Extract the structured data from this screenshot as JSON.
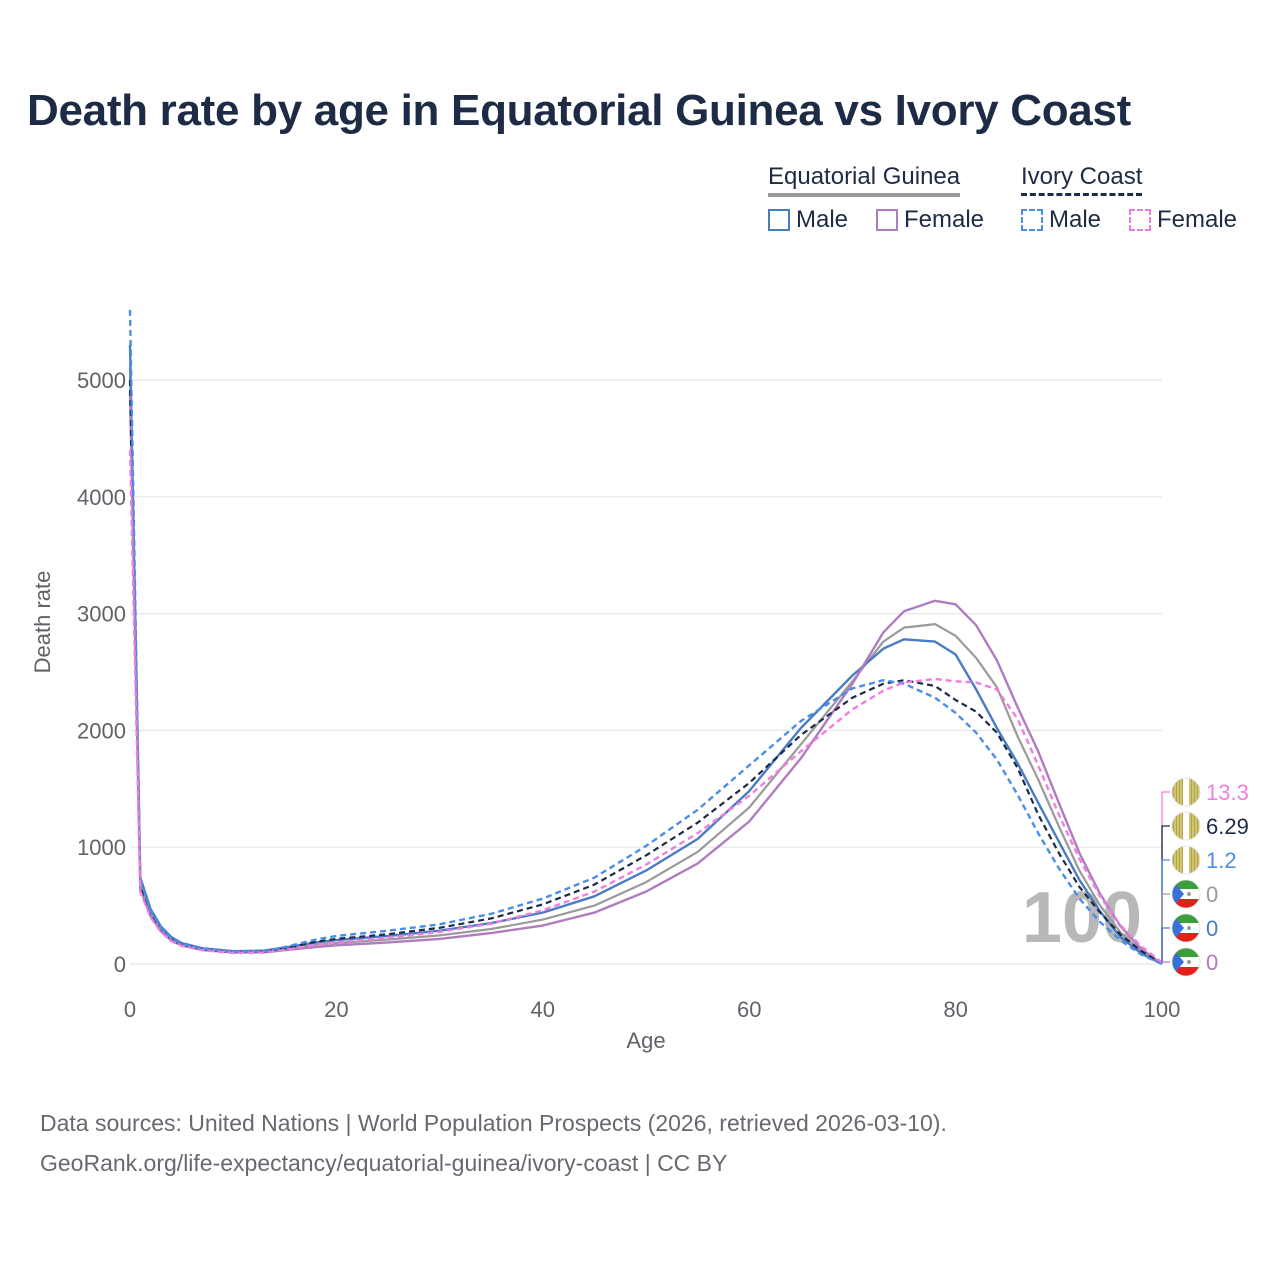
{
  "title": "Death rate by age in Equatorial Guinea vs Ivory Coast",
  "legend": {
    "groups": [
      {
        "name": "Equatorial Guinea",
        "style": "solid",
        "items": [
          "Male",
          "Female"
        ]
      },
      {
        "name": "Ivory Coast",
        "style": "dashed",
        "items": [
          "Male",
          "Female"
        ]
      }
    ]
  },
  "colors": {
    "eg_male": "#4a7cc4",
    "eg_female": "#b07cc0",
    "eg_total": "#9a9a9a",
    "ic_male": "#4a8ee8",
    "ic_female": "#f07ee0",
    "ic_total": "#1d2b45",
    "grid": "#e6e6e6",
    "text": "#1d2b45"
  },
  "watermark": "100",
  "end_labels": [
    {
      "value": "13.3",
      "color": "#f07ee0",
      "flag": "ivory-coast-flag-icon"
    },
    {
      "value": "6.29",
      "color": "#1d2b45",
      "flag": "ivory-coast-flag-icon"
    },
    {
      "value": "1.2",
      "color": "#4a8ee8",
      "flag": "ivory-coast-flag-icon"
    },
    {
      "value": "0",
      "color": "#9a9a9a",
      "flag": "equatorial-guinea-flag-icon"
    },
    {
      "value": "0",
      "color": "#4a7cc4",
      "flag": "equatorial-guinea-flag-icon"
    },
    {
      "value": "0",
      "color": "#b07cc0",
      "flag": "equatorial-guinea-flag-icon"
    }
  ],
  "source": {
    "line1": "Data sources: United Nations | World Population Prospects (2026, retrieved 2026-03-10).",
    "line2": "GeoRank.org/life-expectancy/equatorial-guinea/ivory-coast | CC BY"
  },
  "chart_data": {
    "type": "line",
    "title": "Death rate by age in Equatorial Guinea vs Ivory Coast",
    "xlabel": "Age",
    "ylabel": "Death rate",
    "xlim": [
      0,
      100
    ],
    "ylim": [
      0,
      5500
    ],
    "xticks": [
      0,
      20,
      40,
      60,
      80,
      100
    ],
    "yticks": [
      0,
      1000,
      2000,
      3000,
      4000,
      5000
    ],
    "grid": true,
    "series": [
      {
        "name": "Equatorial Guinea Total",
        "key": "eg_total",
        "dashed": false,
        "points": [
          [
            0,
            5100
          ],
          [
            1,
            690
          ],
          [
            2,
            440
          ],
          [
            3,
            300
          ],
          [
            4,
            215
          ],
          [
            5,
            170
          ],
          [
            7,
            130
          ],
          [
            10,
            105
          ],
          [
            13,
            110
          ],
          [
            15,
            130
          ],
          [
            18,
            165
          ],
          [
            20,
            180
          ],
          [
            25,
            210
          ],
          [
            30,
            245
          ],
          [
            35,
            300
          ],
          [
            40,
            380
          ],
          [
            45,
            500
          ],
          [
            50,
            700
          ],
          [
            55,
            960
          ],
          [
            60,
            1340
          ],
          [
            65,
            1880
          ],
          [
            70,
            2420
          ],
          [
            73,
            2760
          ],
          [
            75,
            2880
          ],
          [
            78,
            2910
          ],
          [
            80,
            2810
          ],
          [
            82,
            2620
          ],
          [
            84,
            2370
          ],
          [
            86,
            1950
          ],
          [
            88,
            1580
          ],
          [
            90,
            1180
          ],
          [
            92,
            800
          ],
          [
            94,
            500
          ],
          [
            96,
            270
          ],
          [
            98,
            110
          ],
          [
            100,
            0
          ]
        ]
      },
      {
        "name": "Equatorial Guinea Male",
        "key": "eg_male",
        "dashed": false,
        "points": [
          [
            0,
            5300
          ],
          [
            1,
            740
          ],
          [
            2,
            470
          ],
          [
            3,
            320
          ],
          [
            4,
            230
          ],
          [
            5,
            180
          ],
          [
            7,
            135
          ],
          [
            10,
            110
          ],
          [
            13,
            115
          ],
          [
            15,
            140
          ],
          [
            18,
            185
          ],
          [
            20,
            205
          ],
          [
            25,
            240
          ],
          [
            30,
            285
          ],
          [
            35,
            350
          ],
          [
            40,
            440
          ],
          [
            45,
            580
          ],
          [
            50,
            800
          ],
          [
            55,
            1070
          ],
          [
            60,
            1480
          ],
          [
            65,
            2020
          ],
          [
            70,
            2470
          ],
          [
            73,
            2700
          ],
          [
            75,
            2780
          ],
          [
            78,
            2760
          ],
          [
            80,
            2650
          ],
          [
            82,
            2350
          ],
          [
            84,
            2020
          ],
          [
            86,
            1720
          ],
          [
            88,
            1380
          ],
          [
            90,
            1050
          ],
          [
            92,
            720
          ],
          [
            94,
            450
          ],
          [
            96,
            230
          ],
          [
            98,
            90
          ],
          [
            100,
            0
          ]
        ]
      },
      {
        "name": "Equatorial Guinea Female",
        "key": "eg_female",
        "dashed": false,
        "points": [
          [
            0,
            4900
          ],
          [
            1,
            640
          ],
          [
            2,
            410
          ],
          [
            3,
            280
          ],
          [
            4,
            200
          ],
          [
            5,
            160
          ],
          [
            7,
            120
          ],
          [
            10,
            100
          ],
          [
            13,
            100
          ],
          [
            15,
            118
          ],
          [
            18,
            145
          ],
          [
            20,
            160
          ],
          [
            25,
            185
          ],
          [
            30,
            215
          ],
          [
            35,
            265
          ],
          [
            40,
            330
          ],
          [
            45,
            440
          ],
          [
            50,
            620
          ],
          [
            55,
            860
          ],
          [
            60,
            1220
          ],
          [
            65,
            1760
          ],
          [
            70,
            2400
          ],
          [
            73,
            2840
          ],
          [
            75,
            3020
          ],
          [
            78,
            3110
          ],
          [
            80,
            3080
          ],
          [
            82,
            2900
          ],
          [
            84,
            2600
          ],
          [
            86,
            2200
          ],
          [
            88,
            1820
          ],
          [
            90,
            1380
          ],
          [
            92,
            950
          ],
          [
            94,
            600
          ],
          [
            96,
            320
          ],
          [
            98,
            130
          ],
          [
            100,
            0
          ]
        ]
      },
      {
        "name": "Ivory Coast Total",
        "key": "ic_total",
        "dashed": true,
        "points": [
          [
            0,
            5000
          ],
          [
            1,
            680
          ],
          [
            2,
            430
          ],
          [
            3,
            295
          ],
          [
            4,
            210
          ],
          [
            5,
            165
          ],
          [
            7,
            125
          ],
          [
            10,
            100
          ],
          [
            13,
            105
          ],
          [
            15,
            135
          ],
          [
            18,
            190
          ],
          [
            20,
            215
          ],
          [
            25,
            255
          ],
          [
            30,
            310
          ],
          [
            35,
            390
          ],
          [
            40,
            510
          ],
          [
            45,
            680
          ],
          [
            50,
            930
          ],
          [
            55,
            1210
          ],
          [
            60,
            1550
          ],
          [
            65,
            1960
          ],
          [
            70,
            2280
          ],
          [
            73,
            2400
          ],
          [
            75,
            2430
          ],
          [
            78,
            2380
          ],
          [
            80,
            2260
          ],
          [
            82,
            2160
          ],
          [
            84,
            1980
          ],
          [
            86,
            1680
          ],
          [
            88,
            1280
          ],
          [
            90,
            950
          ],
          [
            92,
            660
          ],
          [
            94,
            440
          ],
          [
            96,
            250
          ],
          [
            98,
            110
          ],
          [
            100,
            6.29
          ]
        ]
      },
      {
        "name": "Ivory Coast Male",
        "key": "ic_male",
        "dashed": true,
        "points": [
          [
            0,
            5600
          ],
          [
            1,
            720
          ],
          [
            2,
            455
          ],
          [
            3,
            310
          ],
          [
            4,
            220
          ],
          [
            5,
            172
          ],
          [
            7,
            130
          ],
          [
            10,
            105
          ],
          [
            13,
            110
          ],
          [
            15,
            145
          ],
          [
            18,
            210
          ],
          [
            20,
            240
          ],
          [
            25,
            285
          ],
          [
            30,
            340
          ],
          [
            35,
            430
          ],
          [
            40,
            560
          ],
          [
            45,
            740
          ],
          [
            50,
            1010
          ],
          [
            55,
            1320
          ],
          [
            60,
            1700
          ],
          [
            65,
            2080
          ],
          [
            70,
            2360
          ],
          [
            73,
            2430
          ],
          [
            75,
            2400
          ],
          [
            78,
            2280
          ],
          [
            80,
            2150
          ],
          [
            82,
            1980
          ],
          [
            84,
            1750
          ],
          [
            86,
            1450
          ],
          [
            88,
            1120
          ],
          [
            90,
            820
          ],
          [
            92,
            560
          ],
          [
            94,
            360
          ],
          [
            96,
            200
          ],
          [
            98,
            80
          ],
          [
            100,
            1.2
          ]
        ]
      },
      {
        "name": "Ivory Coast Female",
        "key": "ic_female",
        "dashed": true,
        "points": [
          [
            0,
            4400
          ],
          [
            1,
            620
          ],
          [
            2,
            400
          ],
          [
            3,
            275
          ],
          [
            4,
            195
          ],
          [
            5,
            155
          ],
          [
            7,
            118
          ],
          [
            10,
            95
          ],
          [
            13,
            98
          ],
          [
            15,
            120
          ],
          [
            18,
            165
          ],
          [
            20,
            185
          ],
          [
            25,
            225
          ],
          [
            30,
            275
          ],
          [
            35,
            345
          ],
          [
            40,
            460
          ],
          [
            45,
            620
          ],
          [
            50,
            850
          ],
          [
            55,
            1120
          ],
          [
            60,
            1440
          ],
          [
            65,
            1820
          ],
          [
            70,
            2180
          ],
          [
            73,
            2340
          ],
          [
            75,
            2410
          ],
          [
            78,
            2440
          ],
          [
            80,
            2420
          ],
          [
            82,
            2410
          ],
          [
            84,
            2350
          ],
          [
            86,
            2100
          ],
          [
            88,
            1700
          ],
          [
            90,
            1280
          ],
          [
            92,
            900
          ],
          [
            94,
            580
          ],
          [
            96,
            330
          ],
          [
            98,
            150
          ],
          [
            100,
            13.3
          ]
        ]
      }
    ]
  }
}
